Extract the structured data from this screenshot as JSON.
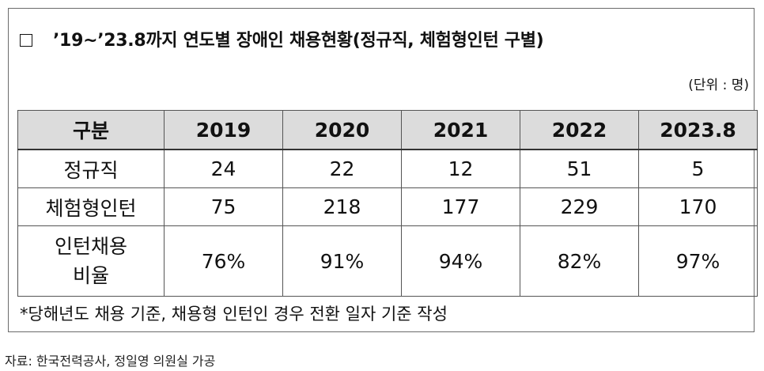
{
  "title": {
    "checkbox_icon": "empty-square-icon",
    "text": "’19~’23.8까지 연도별 장애인 채용현황(정규직, 체험형인턴 구별)"
  },
  "unit": "(단위 : 명)",
  "table": {
    "headers": [
      "구분",
      "2019",
      "2020",
      "2021",
      "2022",
      "2023.8"
    ],
    "rows": [
      {
        "label": "정규직",
        "values": [
          "24",
          "22",
          "12",
          "51",
          "5"
        ]
      },
      {
        "label": "체험형인턴",
        "values": [
          "75",
          "218",
          "177",
          "229",
          "170"
        ]
      },
      {
        "label": "인턴채용\n비율",
        "values": [
          "76%",
          "91%",
          "94%",
          "82%",
          "97%"
        ]
      }
    ]
  },
  "note": "*당해년도 채용 기준, 채용형 인턴인 경우 전환 일자 기준 작성",
  "source": "자료: 한국전력공사, 정일영 의원실 가공"
}
